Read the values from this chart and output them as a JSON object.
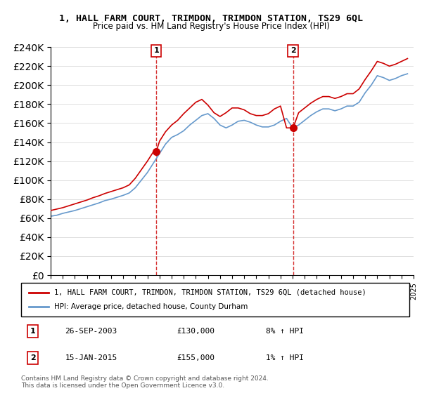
{
  "title": "1, HALL FARM COURT, TRIMDON, TRIMDON STATION, TS29 6QL",
  "subtitle": "Price paid vs. HM Land Registry's House Price Index (HPI)",
  "legend_line1": "1, HALL FARM COURT, TRIMDON, TRIMDON STATION, TS29 6QL (detached house)",
  "legend_line2": "HPI: Average price, detached house, County Durham",
  "annotation1_label": "1",
  "annotation1_date": "26-SEP-2003",
  "annotation1_price": "£130,000",
  "annotation1_hpi": "8% ↑ HPI",
  "annotation2_label": "2",
  "annotation2_date": "15-JAN-2015",
  "annotation2_price": "£155,000",
  "annotation2_hpi": "1% ↑ HPI",
  "footer": "Contains HM Land Registry data © Crown copyright and database right 2024.\nThis data is licensed under the Open Government Licence v3.0.",
  "red_color": "#cc0000",
  "blue_color": "#6699cc",
  "ylim": [
    0,
    240000
  ],
  "yticks": [
    0,
    20000,
    40000,
    60000,
    80000,
    100000,
    120000,
    140000,
    160000,
    180000,
    200000,
    220000,
    240000
  ],
  "year_start": 1995,
  "year_end": 2025,
  "sale1_year": 2003.73,
  "sale1_value": 130000,
  "sale2_year": 2015.04,
  "sale2_value": 155000,
  "hpi_years": [
    1995,
    1995.5,
    1996,
    1996.5,
    1997,
    1997.5,
    1998,
    1998.5,
    1999,
    1999.5,
    2000,
    2000.5,
    2001,
    2001.5,
    2002,
    2002.5,
    2003,
    2003.5,
    2004,
    2004.5,
    2005,
    2005.5,
    2006,
    2006.5,
    2007,
    2007.5,
    2008,
    2008.5,
    2009,
    2009.5,
    2010,
    2010.5,
    2011,
    2011.5,
    2012,
    2012.5,
    2013,
    2013.5,
    2014,
    2014.5,
    2015,
    2015.5,
    2016,
    2016.5,
    2017,
    2017.5,
    2018,
    2018.5,
    2019,
    2019.5,
    2020,
    2020.5,
    2021,
    2021.5,
    2022,
    2022.5,
    2023,
    2023.5,
    2024,
    2024.5
  ],
  "hpi_values": [
    62000,
    63000,
    65000,
    66500,
    68000,
    70000,
    72000,
    74000,
    76000,
    78500,
    80000,
    82000,
    84000,
    86500,
    92000,
    100000,
    108000,
    118000,
    128000,
    138000,
    145000,
    148000,
    152000,
    158000,
    163000,
    168000,
    170000,
    165000,
    158000,
    155000,
    158000,
    162000,
    163000,
    161000,
    158000,
    156000,
    156000,
    158000,
    162000,
    165000,
    155000,
    158000,
    163000,
    168000,
    172000,
    175000,
    175000,
    173000,
    175000,
    178000,
    178000,
    182000,
    192000,
    200000,
    210000,
    208000,
    205000,
    207000,
    210000,
    212000
  ],
  "red_years": [
    1995,
    1995.5,
    1996,
    1996.5,
    1997,
    1997.5,
    1998,
    1998.5,
    1999,
    1999.5,
    2000,
    2000.5,
    2001,
    2001.5,
    2002,
    2002.5,
    2003,
    2003.5,
    2003.73,
    2004,
    2004.5,
    2005,
    2005.5,
    2006,
    2006.5,
    2007,
    2007.5,
    2008,
    2008.5,
    2009,
    2009.5,
    2010,
    2010.5,
    2011,
    2011.5,
    2012,
    2012.5,
    2013,
    2013.5,
    2014,
    2014.5,
    2015,
    2015.04,
    2015.5,
    2016,
    2016.5,
    2017,
    2017.5,
    2018,
    2018.5,
    2019,
    2019.5,
    2020,
    2020.5,
    2021,
    2021.5,
    2022,
    2022.5,
    2023,
    2023.5,
    2024,
    2024.5
  ],
  "red_values": [
    68000,
    69500,
    71000,
    73000,
    75000,
    77000,
    79000,
    81500,
    83500,
    86000,
    88000,
    90000,
    92000,
    95000,
    102000,
    111000,
    120000,
    130000,
    130000,
    141000,
    151000,
    158000,
    163000,
    170000,
    176000,
    182000,
    185000,
    179000,
    171000,
    167000,
    171000,
    176000,
    176000,
    174000,
    170000,
    168000,
    168000,
    170000,
    175000,
    178000,
    155000,
    155000,
    155000,
    171000,
    176000,
    181000,
    185000,
    188000,
    188000,
    186000,
    188000,
    191000,
    191000,
    196000,
    206000,
    215000,
    225000,
    223000,
    220000,
    222000,
    225000,
    228000
  ]
}
